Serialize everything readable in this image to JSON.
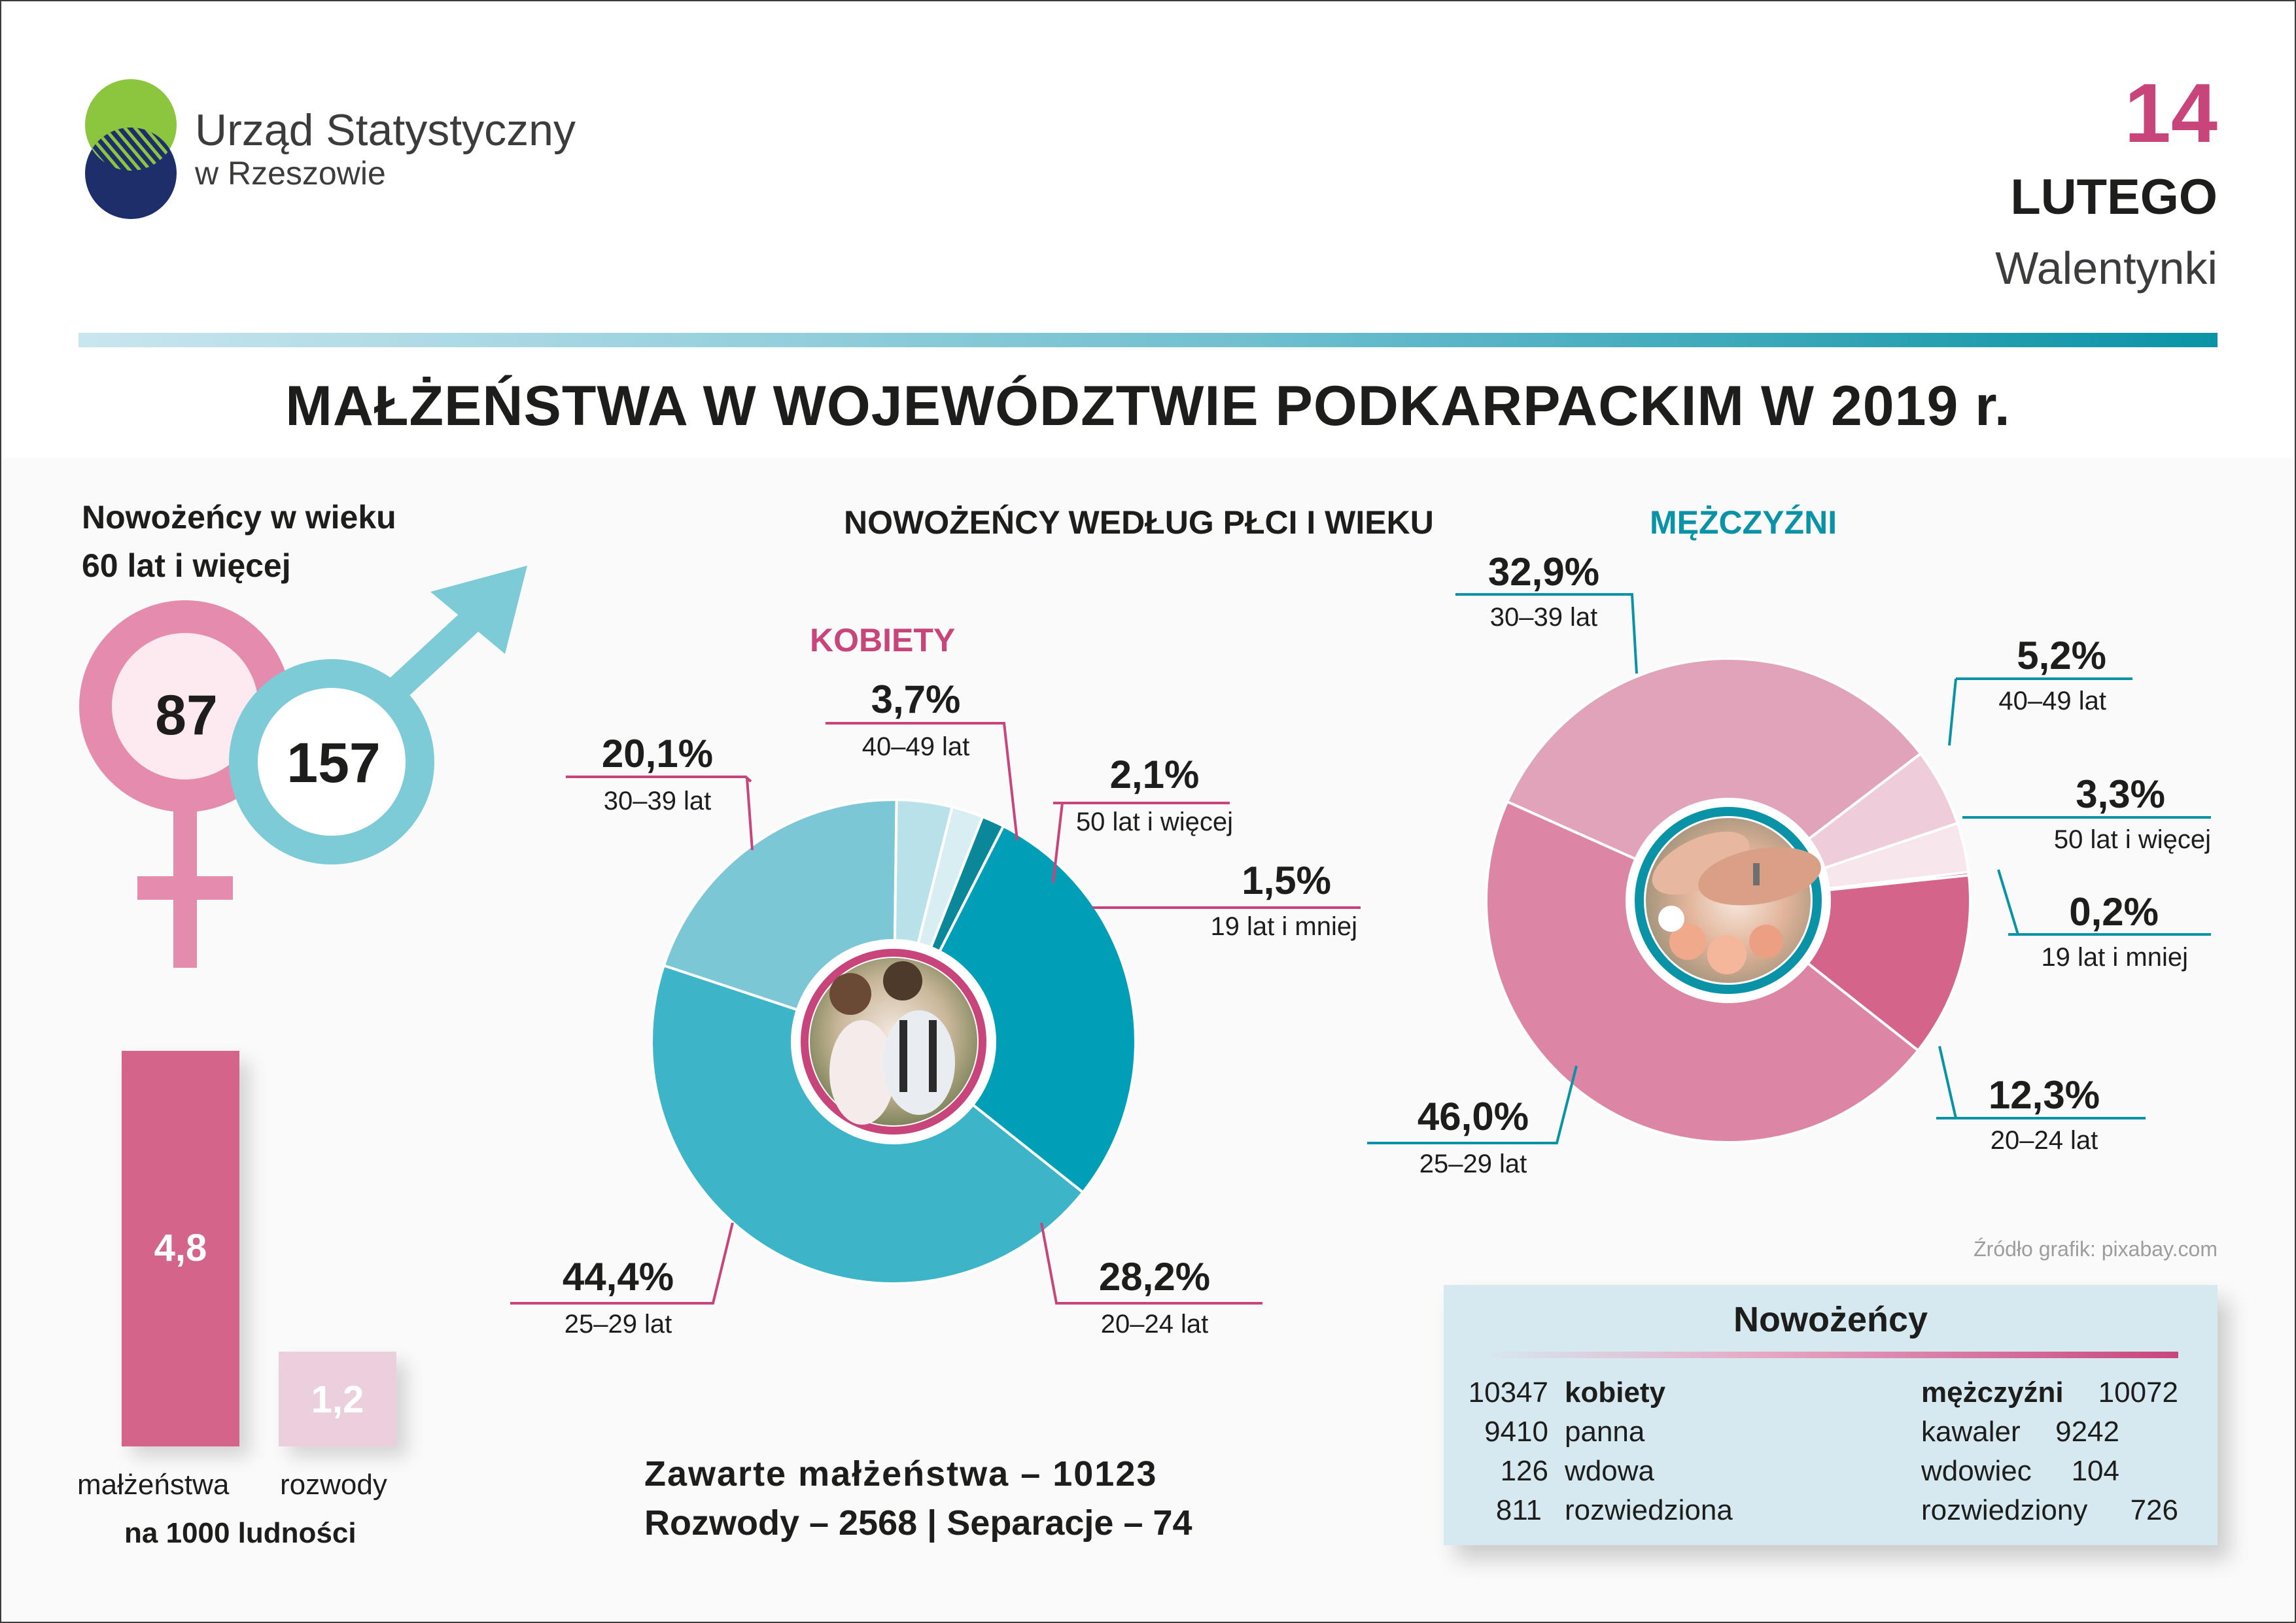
{
  "header": {
    "org_line1": "Urząd Statystyczny",
    "org_line2": "w Rzeszowie",
    "day": "14",
    "month": "LUTEGO",
    "holiday": "Walentynki"
  },
  "title": "MAŁŻEŃSTWA W WOJEWÓDZTWIE PODKARPACKIM W 2019 r.",
  "seniors": {
    "title_line1": "Nowożeńcy w wieku",
    "title_line2": "60 lat i więcej",
    "women": "87",
    "men": "157"
  },
  "rates": {
    "marriages_value": "4,8",
    "divorces_value": "1,2",
    "marriages_label": "małżeństwa",
    "divorces_label": "rozwody",
    "caption": "na 1000 ludności"
  },
  "donut_section_title": "NOWOŻEŃCY WEDŁUG PŁCI I WIEKU",
  "totals": {
    "line1": "Zawarte  małżeństwa  –  10123",
    "line2": "Rozwody – 2568  |  Separacje – 74"
  },
  "source_note": "Źródło grafik: pixabay.com",
  "chart_data": [
    {
      "type": "pie",
      "title": "KOBIETY",
      "categories": [
        "20–24 lat",
        "25–29 lat",
        "30–39 lat",
        "40–49 lat",
        "50 lat i więcej",
        "19 lat i mniej"
      ],
      "values": [
        28.2,
        44.4,
        20.1,
        3.7,
        2.1,
        1.5
      ],
      "labels": [
        "28,2%",
        "44,4%",
        "20,1%",
        "3,7%",
        "2,1%",
        "1,5%"
      ],
      "colors": [
        "#009fb7",
        "#3db4c8",
        "#7cc7d5",
        "#b9e1ea",
        "#d8eef3",
        "#0a8799"
      ]
    },
    {
      "type": "pie",
      "title": "MĘŻCZYŹNI",
      "categories": [
        "20–24 lat",
        "25–29 lat",
        "30–39 lat",
        "40–49 lat",
        "50 lat i więcej",
        "19 lat i mniej"
      ],
      "values": [
        12.3,
        46.0,
        32.9,
        5.2,
        3.3,
        0.2
      ],
      "labels": [
        "12,3%",
        "46,0%",
        "32,9%",
        "5,2%",
        "3,3%",
        "0,2%"
      ],
      "colors": [
        "#d4648a",
        "#dc85a4",
        "#e0a3b9",
        "#efccda",
        "#f8e6ed",
        "#c24873"
      ]
    }
  ],
  "newlyweds": {
    "title": "Nowożeńcy",
    "women": [
      {
        "value": "10347",
        "label": "kobiety"
      },
      {
        "value": "9410",
        "label": "panna"
      },
      {
        "value": "126",
        "label": "wdowa"
      },
      {
        "value": "811",
        "label": "rozwiedziona"
      }
    ],
    "men": [
      {
        "label": "mężczyźni",
        "value": "10072"
      },
      {
        "label": "kawaler",
        "value": "9242"
      },
      {
        "label": "wdowiec",
        "value": "104"
      },
      {
        "label": "rozwiedziony",
        "value": "726"
      }
    ]
  },
  "colors": {
    "pink": "#c8457c",
    "teal": "#0a93a6",
    "light_teal": "#7ccbd7",
    "light_pink": "#e6a9c4"
  }
}
